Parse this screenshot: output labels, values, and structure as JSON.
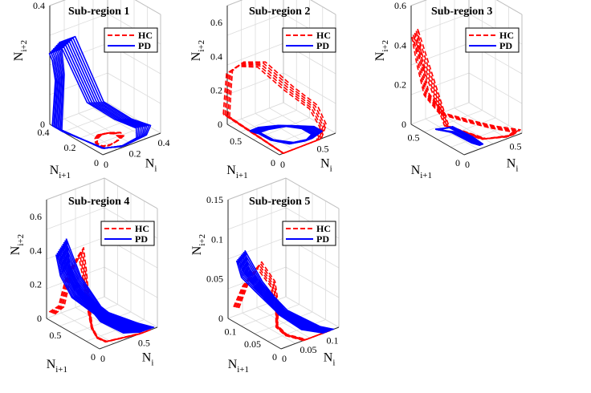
{
  "figure": {
    "background": "#ffffff"
  },
  "chart_data": [
    {
      "type": "line3d",
      "title": "Sub-region 1",
      "xlabel": "N",
      "xlabel_sub": "i",
      "ylabel": "N",
      "ylabel_sub": "i+1",
      "zlabel": "N",
      "zlabel_sub": "i+2",
      "xlim": [
        0,
        0.4
      ],
      "ylim": [
        0,
        0.4
      ],
      "zlim": [
        0,
        0.4
      ],
      "xticks": [
        "0",
        "0.2",
        "0.4"
      ],
      "yticks": [
        "0",
        "0.2",
        "0.4"
      ],
      "zticks": [
        "0",
        "0.4"
      ],
      "legend": [
        {
          "label": "HC",
          "color": "#ff0000",
          "style": "dashed"
        },
        {
          "label": "PD",
          "color": "#0000ff",
          "style": "solid"
        }
      ],
      "series": [
        {
          "name": "HC",
          "loops": 6,
          "x": [
            0.09,
            0.05,
            0.02,
            0.01,
            0.02,
            0.06,
            0.12,
            0.17,
            0.18,
            0.14,
            0.09
          ],
          "y": [
            0.12,
            0.1,
            0.07,
            0.04,
            0.02,
            0.01,
            0.02,
            0.04,
            0.08,
            0.11,
            0.12
          ],
          "z": [
            0.02,
            0.02,
            0.02,
            0.02,
            0.02,
            0.02,
            0.02,
            0.02,
            0.02,
            0.02,
            0.02
          ]
        },
        {
          "name": "PD",
          "loops": 8,
          "x": [
            0.0,
            0.0,
            0.0,
            0.0,
            0.1,
            0.25,
            0.35,
            0.38,
            0.3,
            0.15,
            0.05,
            0.0
          ],
          "y": [
            0.34,
            0.32,
            0.34,
            0.36,
            0.36,
            0.32,
            0.22,
            0.1,
            0.03,
            0.01,
            0.05,
            0.34
          ],
          "z": [
            0.0,
            0.18,
            0.25,
            0.27,
            0.27,
            0.05,
            0.0,
            0.0,
            0.0,
            0.0,
            0.0,
            0.0
          ]
        }
      ]
    },
    {
      "type": "line3d",
      "title": "Sub-region 2",
      "xlabel": "N",
      "xlabel_sub": "i",
      "ylabel": "N",
      "ylabel_sub": "i+1",
      "zlabel": "N",
      "zlabel_sub": "i+2",
      "xlim": [
        0,
        0.7
      ],
      "ylim": [
        0,
        0.7
      ],
      "zlim": [
        0,
        0.7
      ],
      "xticks": [
        "0",
        "0.5"
      ],
      "yticks": [
        "0",
        "0.5"
      ],
      "zticks": [
        "0",
        "0.2",
        "0.4",
        "0.6"
      ],
      "legend": [
        {
          "label": "HC",
          "color": "#ff0000",
          "style": "dashed"
        },
        {
          "label": "PD",
          "color": "#0000ff",
          "style": "solid"
        }
      ],
      "series": [
        {
          "name": "HC",
          "loops": 5,
          "x": [
            0.0,
            0.0,
            0.0,
            0.1,
            0.3,
            0.5,
            0.62,
            0.6,
            0.5,
            0.35,
            0.2,
            0.05,
            0.0
          ],
          "y": [
            0.7,
            0.68,
            0.66,
            0.62,
            0.55,
            0.4,
            0.2,
            0.05,
            0.0,
            0.0,
            0.0,
            0.0,
            0.7
          ],
          "z": [
            0.05,
            0.2,
            0.32,
            0.36,
            0.34,
            0.2,
            0.12,
            0.05,
            0.0,
            0.0,
            0.0,
            0.0,
            0.05
          ]
        },
        {
          "name": "PD",
          "loops": 8,
          "x": [
            0.05,
            0.2,
            0.4,
            0.55,
            0.55,
            0.4,
            0.2,
            0.05,
            0.02,
            0.05
          ],
          "y": [
            0.4,
            0.42,
            0.35,
            0.2,
            0.08,
            0.03,
            0.05,
            0.15,
            0.3,
            0.4
          ],
          "z": [
            0.02,
            0.01,
            0.01,
            0.01,
            0.01,
            0.01,
            0.02,
            0.04,
            0.05,
            0.02
          ]
        }
      ]
    },
    {
      "type": "line3d",
      "title": "Sub-region 3",
      "xlabel": "N",
      "xlabel_sub": "i",
      "ylabel": "N",
      "ylabel_sub": "i+1",
      "zlabel": "N",
      "zlabel_sub": "i+2",
      "xlim": [
        0,
        0.6
      ],
      "ylim": [
        0,
        0.6
      ],
      "zlim": [
        0,
        0.6
      ],
      "xticks": [
        "0",
        "0.5"
      ],
      "yticks": [
        "0",
        "0.5"
      ],
      "zticks": [
        "0",
        "0.2",
        "0.4",
        "0.6"
      ],
      "legend": [
        {
          "label": "HC",
          "color": "#ff0000",
          "style": "dashed"
        },
        {
          "label": "PD",
          "color": "#0000ff",
          "style": "solid"
        }
      ],
      "series": [
        {
          "name": "HC",
          "loops": 5,
          "x": [
            0.0,
            0.0,
            0.0,
            0.1,
            0.3,
            0.45,
            0.6,
            0.5,
            0.3,
            0.1,
            0.0
          ],
          "y": [
            0.55,
            0.5,
            0.42,
            0.35,
            0.25,
            0.15,
            0.05,
            0.02,
            0.1,
            0.3,
            0.55
          ],
          "z": [
            0.48,
            0.35,
            0.2,
            0.1,
            0.05,
            0.02,
            0.0,
            0.0,
            0.0,
            0.05,
            0.48
          ]
        },
        {
          "name": "PD",
          "loops": 6,
          "x": [
            0.0,
            0.05,
            0.15,
            0.2,
            0.15,
            0.05,
            0.0
          ],
          "y": [
            0.3,
            0.2,
            0.08,
            0.02,
            0.06,
            0.18,
            0.3
          ],
          "z": [
            0.05,
            0.08,
            0.04,
            0.01,
            0.02,
            0.06,
            0.05
          ]
        }
      ]
    },
    {
      "type": "line3d",
      "title": "Sub-region 4",
      "xlabel": "N",
      "xlabel_sub": "i",
      "ylabel": "N",
      "ylabel_sub": "i+1",
      "zlabel": "N",
      "zlabel_sub": "i+2",
      "xlim": [
        0,
        0.7
      ],
      "ylim": [
        0,
        0.7
      ],
      "zlim": [
        0,
        0.7
      ],
      "xticks": [
        "0",
        "0.5"
      ],
      "yticks": [
        "0",
        "0.5"
      ],
      "zticks": [
        "0",
        "0.2",
        "0.4",
        "0.6"
      ],
      "legend": [
        {
          "label": "HC",
          "color": "#ff0000",
          "style": "dashed"
        },
        {
          "label": "PD",
          "color": "#0000ff",
          "style": "solid"
        }
      ],
      "series": [
        {
          "name": "HC",
          "loops": 5,
          "x": [
            0.0,
            0.05,
            0.1,
            0.15,
            0.1,
            0.05,
            0.0,
            0.02,
            0.1,
            0.3,
            0.5,
            0.6
          ],
          "y": [
            0.62,
            0.55,
            0.5,
            0.4,
            0.3,
            0.2,
            0.1,
            0.05,
            0.02,
            0.01,
            0.0,
            0.0
          ],
          "z": [
            0.05,
            0.1,
            0.3,
            0.45,
            0.35,
            0.2,
            0.1,
            0.05,
            0.02,
            0.01,
            0.0,
            0.0
          ]
        },
        {
          "name": "PD",
          "loops": 10,
          "x": [
            0.0,
            0.0,
            0.1,
            0.3,
            0.5,
            0.6,
            0.4,
            0.2,
            0.05,
            0.0
          ],
          "y": [
            0.5,
            0.45,
            0.4,
            0.28,
            0.12,
            0.02,
            0.05,
            0.15,
            0.35,
            0.5
          ],
          "z": [
            0.48,
            0.35,
            0.2,
            0.08,
            0.02,
            0.0,
            0.02,
            0.1,
            0.3,
            0.48
          ]
        }
      ]
    },
    {
      "type": "line3d",
      "title": "Sub-region 5",
      "xlabel": "N",
      "xlabel_sub": "i",
      "ylabel": "N",
      "ylabel_sub": "i+1",
      "zlabel": "N",
      "zlabel_sub": "i+2",
      "xlim": [
        0,
        0.12
      ],
      "ylim": [
        0,
        0.12
      ],
      "zlim": [
        0,
        0.15
      ],
      "xticks": [
        "0",
        "0.05",
        "0.1"
      ],
      "yticks": [
        "0",
        "0.05",
        "0.1"
      ],
      "zticks": [
        "0",
        "0.05",
        "0.1",
        "0.15"
      ],
      "legend": [
        {
          "label": "HC",
          "color": "#ff0000",
          "style": "dashed"
        },
        {
          "label": "PD",
          "color": "#0000ff",
          "style": "solid"
        }
      ],
      "series": [
        {
          "name": "HC",
          "loops": 5,
          "x": [
            0.0,
            0.01,
            0.02,
            0.03,
            0.02,
            0.01,
            0.02,
            0.05,
            0.08,
            0.1
          ],
          "y": [
            0.1,
            0.09,
            0.07,
            0.05,
            0.03,
            0.02,
            0.01,
            0.0,
            0.0,
            0.0
          ],
          "z": [
            0.02,
            0.05,
            0.08,
            0.06,
            0.04,
            0.02,
            0.01,
            0.0,
            0.0,
            0.0
          ]
        },
        {
          "name": "PD",
          "loops": 8,
          "x": [
            0.0,
            0.0,
            0.02,
            0.05,
            0.09,
            0.1,
            0.06,
            0.03,
            0.01,
            0.0
          ],
          "y": [
            0.09,
            0.08,
            0.07,
            0.05,
            0.02,
            0.0,
            0.01,
            0.03,
            0.06,
            0.09
          ],
          "z": [
            0.09,
            0.07,
            0.05,
            0.02,
            0.0,
            0.0,
            0.01,
            0.03,
            0.06,
            0.09
          ]
        }
      ]
    }
  ]
}
